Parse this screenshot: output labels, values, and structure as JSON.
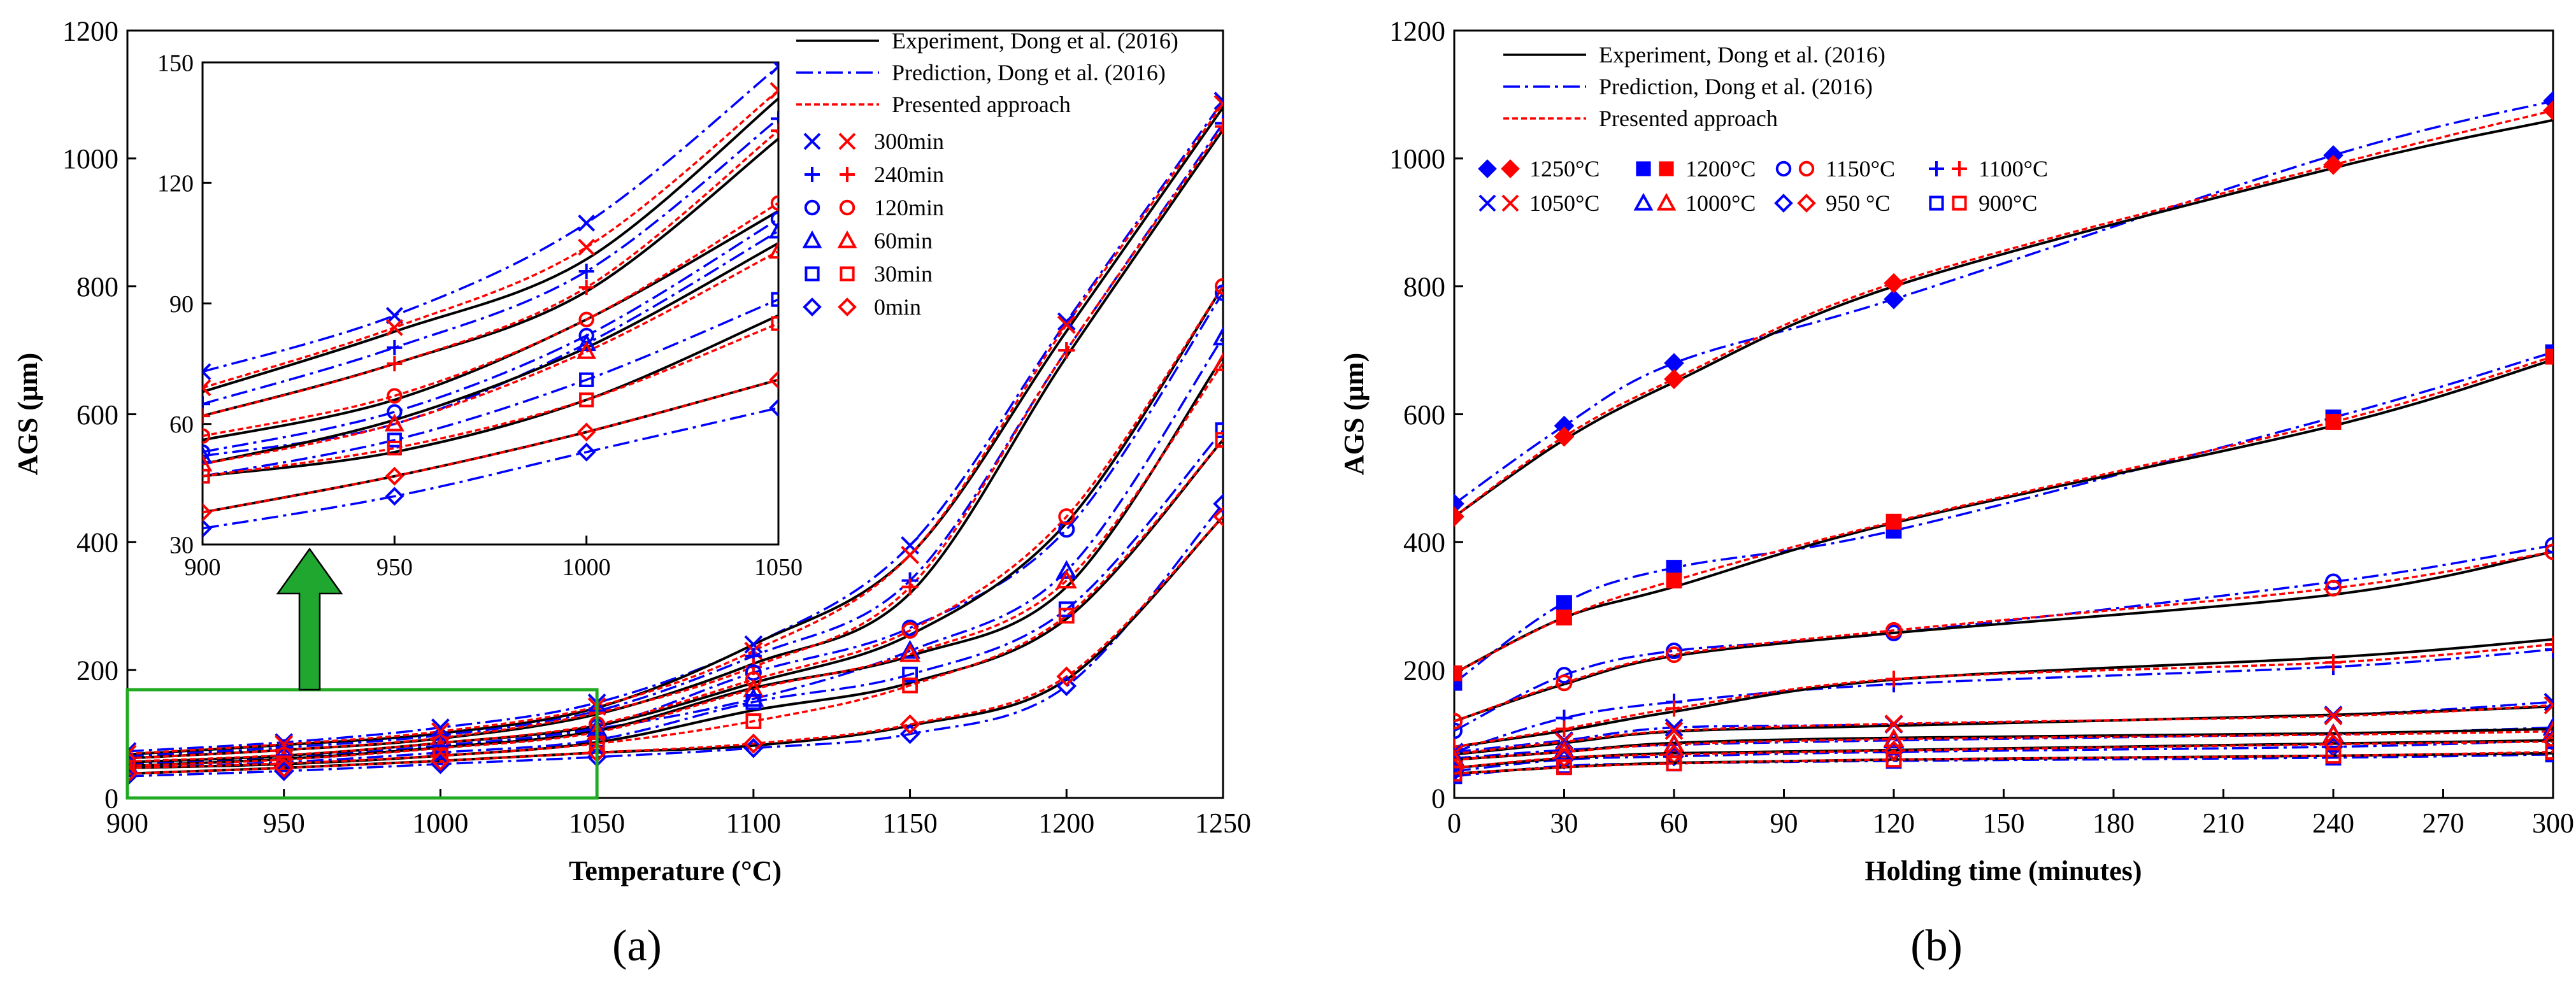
{
  "colors": {
    "experiment": "#000000",
    "prediction": "#0000ff",
    "presented": "#ff0000",
    "highlight": "#22aa22",
    "arrow_fill": "#1fa72f"
  },
  "panels": {
    "a": {
      "label": "(a)",
      "letter": "a"
    },
    "b": {
      "label": "(b)",
      "letter": "b"
    }
  },
  "chart_data": [
    {
      "id": "a",
      "type": "line",
      "title": "",
      "xlabel": "Temperature (°C)",
      "ylabel": "AGS (μm)",
      "xlim": [
        900,
        1250
      ],
      "ylim": [
        0,
        1200
      ],
      "x_ticks": [
        900,
        950,
        1000,
        1050,
        1100,
        1150,
        1200,
        1250
      ],
      "y_ticks": [
        0,
        200,
        400,
        600,
        800,
        1000,
        1200
      ],
      "grid": false,
      "legend_position": "top-right",
      "line_legend": [
        {
          "name": "Experiment,  Dong et al. (2016)",
          "style": "solid",
          "color": "#000000"
        },
        {
          "name": "Prediction, Dong et al. (2016)",
          "style": "dashdot",
          "color": "#0000ff"
        },
        {
          "name": "Presented approach",
          "style": "dotted",
          "color": "#ff0000"
        }
      ],
      "marker_legend": [
        {
          "name": "300min",
          "marker": "x"
        },
        {
          "name": "240min",
          "marker": "plus"
        },
        {
          "name": "120min",
          "marker": "circle"
        },
        {
          "name": "60min",
          "marker": "triangle"
        },
        {
          "name": "30min",
          "marker": "square"
        },
        {
          "name": "0min",
          "marker": "diamond"
        }
      ],
      "x": [
        900,
        950,
        1000,
        1050,
        1100,
        1150,
        1200,
        1250
      ],
      "series": [
        {
          "name": "300min",
          "marker": "x",
          "experiment": [
            68,
            83,
            101,
            141,
            240,
            380,
            730,
            1080
          ],
          "prediction": [
            73,
            87,
            110,
            149,
            240,
            395,
            745,
            1090
          ],
          "presented": [
            69,
            84,
            104,
            143,
            230,
            380,
            740,
            1085
          ]
        },
        {
          "name": "240min",
          "marker": "plus",
          "experiment": [
            62,
            75,
            93,
            131,
            210,
            320,
            690,
            1045
          ],
          "prediction": [
            65,
            79,
            98,
            136,
            222,
            340,
            700,
            1055
          ],
          "presented": [
            62,
            75,
            94,
            133,
            205,
            330,
            700,
            1050
          ]
        },
        {
          "name": "120min",
          "marker": "circle",
          "experiment": [
            56,
            66,
            86,
            113,
            180,
            255,
            430,
            800
          ],
          "prediction": [
            53,
            63,
            82,
            111,
            196,
            266,
            420,
            790
          ],
          "presented": [
            57,
            67,
            86,
            115,
            185,
            262,
            440,
            800
          ]
        },
        {
          "name": "60min",
          "marker": "triangle",
          "experiment": [
            50,
            61,
            79,
            105,
            172,
            222,
            330,
            690
          ],
          "prediction": [
            52,
            60,
            80,
            108,
            155,
            230,
            355,
            720
          ],
          "presented": [
            50,
            60,
            78,
            103,
            170,
            225,
            340,
            680
          ]
        },
        {
          "name": "30min",
          "marker": "square",
          "experiment": [
            47,
            53,
            66,
            87,
            137,
            180,
            280,
            560
          ],
          "prediction": [
            47,
            56,
            71,
            91,
            150,
            193,
            295,
            575
          ],
          "presented": [
            47,
            54,
            66,
            85,
            120,
            176,
            285,
            560
          ]
        },
        {
          "name": "0min",
          "marker": "diamond",
          "experiment": [
            38,
            47,
            58,
            71,
            82,
            113,
            185,
            440
          ],
          "prediction": [
            34,
            42,
            53,
            64,
            78,
            100,
            175,
            460
          ],
          "presented": [
            38,
            47,
            58,
            71,
            85,
            115,
            190,
            440
          ]
        }
      ],
      "inset": {
        "xlim": [
          900,
          1050
        ],
        "ylim": [
          30,
          150
        ],
        "x_ticks": [
          900,
          950,
          1000,
          1050
        ],
        "y_ticks": [
          30,
          60,
          90,
          120,
          150
        ]
      }
    },
    {
      "id": "b",
      "type": "line",
      "title": "",
      "xlabel": "Holding time (minutes)",
      "ylabel": "AGS (μm)",
      "xlim": [
        0,
        300
      ],
      "ylim": [
        0,
        1200
      ],
      "x_ticks": [
        0,
        30,
        60,
        90,
        120,
        150,
        180,
        210,
        240,
        270,
        300
      ],
      "y_ticks": [
        0,
        200,
        400,
        600,
        800,
        1000,
        1200
      ],
      "grid": false,
      "legend_position": "top-left",
      "line_legend": [
        {
          "name": "Experiment,  Dong et al. (2016)",
          "style": "solid",
          "color": "#000000"
        },
        {
          "name": "Prediction, Dong et al. (2016)",
          "style": "dashdot",
          "color": "#0000ff"
        },
        {
          "name": "Presented approach",
          "style": "dotted",
          "color": "#ff0000"
        }
      ],
      "x": [
        0,
        30,
        60,
        120,
        240,
        300
      ],
      "series": [
        {
          "name": "1250°C",
          "marker": "diamond-filled",
          "experiment": [
            440,
            560,
            650,
            800,
            985,
            1060
          ],
          "prediction": [
            460,
            582,
            680,
            780,
            1005,
            1090
          ],
          "presented": [
            440,
            565,
            655,
            805,
            990,
            1075
          ]
        },
        {
          "name": "1200°C",
          "marker": "square-filled",
          "experiment": [
            195,
            282,
            330,
            430,
            582,
            685
          ],
          "prediction": [
            180,
            305,
            360,
            418,
            595,
            697
          ],
          "presented": [
            195,
            282,
            340,
            432,
            588,
            690
          ]
        },
        {
          "name": "1150°C",
          "marker": "circle",
          "experiment": [
            120,
            178,
            222,
            258,
            318,
            385
          ],
          "prediction": [
            105,
            192,
            230,
            258,
            338,
            395
          ],
          "presented": [
            120,
            180,
            224,
            262,
            328,
            385
          ]
        },
        {
          "name": "1100°C",
          "marker": "plus",
          "experiment": [
            80,
            105,
            135,
            185,
            220,
            248
          ],
          "prediction": [
            72,
            125,
            150,
            178,
            205,
            232
          ],
          "presented": [
            80,
            108,
            140,
            186,
            212,
            240
          ]
        },
        {
          "name": "1050°C",
          "marker": "x",
          "experiment": [
            68,
            86,
            104,
            113,
            130,
            143
          ],
          "prediction": [
            72,
            90,
            110,
            115,
            130,
            150
          ],
          "presented": [
            69,
            88,
            105,
            116,
            128,
            145
          ]
        },
        {
          "name": "1000°C",
          "marker": "triangle",
          "experiment": [
            60,
            72,
            86,
            94,
            101,
            108
          ],
          "prediction": [
            62,
            75,
            83,
            90,
            100,
            110
          ],
          "presented": [
            60,
            72,
            84,
            92,
            99,
            104
          ]
        },
        {
          "name": "950 °C",
          "marker": "diamond",
          "experiment": [
            47,
            62,
            70,
            75,
            85,
            90
          ],
          "prediction": [
            42,
            60,
            65,
            72,
            80,
            90
          ],
          "presented": [
            47,
            63,
            68,
            74,
            84,
            88
          ]
        },
        {
          "name": "900°C",
          "marker": "square",
          "experiment": [
            38,
            48,
            55,
            60,
            66,
            70
          ],
          "prediction": [
            34,
            50,
            54,
            58,
            63,
            68
          ],
          "presented": [
            38,
            48,
            54,
            60,
            66,
            72
          ]
        }
      ]
    }
  ]
}
